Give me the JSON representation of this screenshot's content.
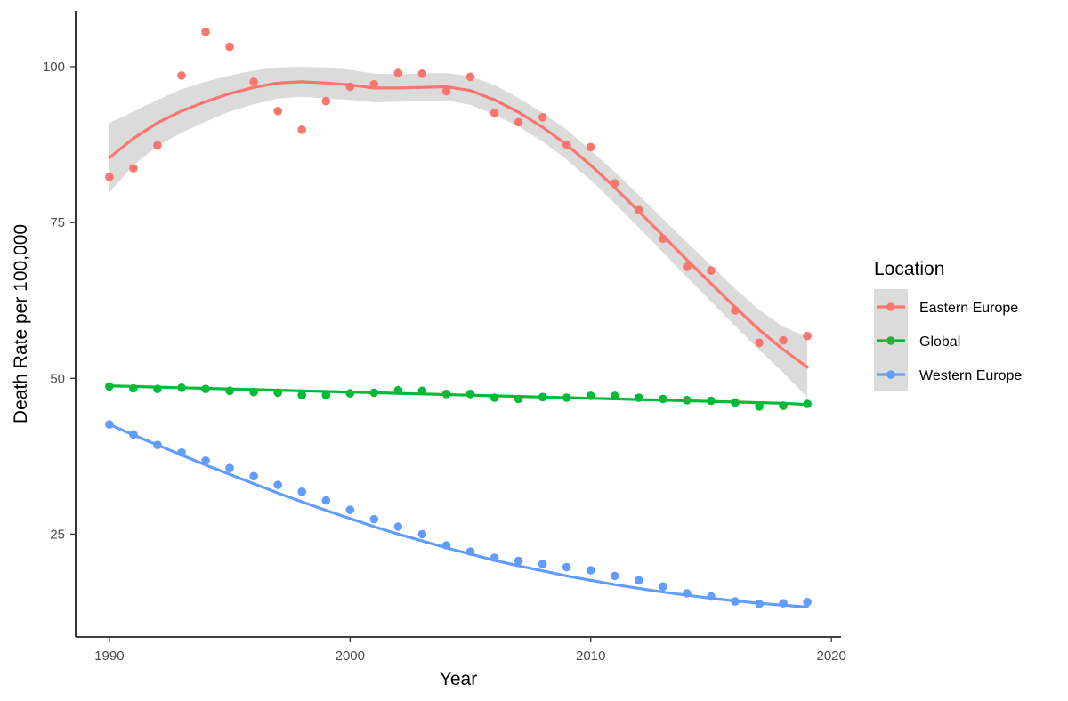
{
  "chart_data": {
    "type": "scatter",
    "title": "",
    "xlabel": "Year",
    "ylabel": "Death Rate per 100,000",
    "xlim": [
      1988.6,
      2020.4
    ],
    "ylim": [
      8.5,
      109
    ],
    "x_ticks": [
      1990,
      2000,
      2010,
      2020
    ],
    "y_ticks": [
      25,
      50,
      75,
      100
    ],
    "grid": false,
    "legend": {
      "title": "Location",
      "placement": "right"
    },
    "x": [
      1990,
      1991,
      1992,
      1993,
      1994,
      1995,
      1996,
      1997,
      1998,
      1999,
      2000,
      2001,
      2002,
      2003,
      2004,
      2005,
      2006,
      2007,
      2008,
      2009,
      2010,
      2011,
      2012,
      2013,
      2014,
      2015,
      2016,
      2017,
      2018,
      2019
    ],
    "series": [
      {
        "name": "Eastern Europe",
        "color": "#F8766D",
        "values": [
          82.3,
          83.7,
          87.4,
          98.6,
          105.6,
          103.2,
          97.6,
          92.9,
          89.9,
          94.5,
          96.8,
          97.2,
          99.0,
          98.9,
          96.1,
          98.4,
          92.6,
          91.1,
          91.9,
          87.5,
          87.1,
          81.3,
          77.0,
          72.4,
          67.9,
          67.3,
          60.9,
          55.7,
          56.1,
          56.8
        ],
        "smooth": [
          85.4,
          88.5,
          91.0,
          92.9,
          94.4,
          95.7,
          96.7,
          97.4,
          97.6,
          97.4,
          97.1,
          96.6,
          96.6,
          96.7,
          96.8,
          96.2,
          94.7,
          92.7,
          90.3,
          87.5,
          84.2,
          80.6,
          76.8,
          72.9,
          69.0,
          65.2,
          61.4,
          57.8,
          54.6,
          51.8
        ],
        "ci_upper": [
          91.0,
          92.8,
          94.7,
          96.4,
          97.6,
          98.6,
          99.4,
          99.9,
          100.0,
          99.9,
          99.5,
          98.9,
          98.8,
          98.9,
          99.0,
          98.5,
          97.1,
          95.0,
          92.6,
          89.9,
          86.6,
          83.1,
          79.4,
          75.6,
          71.8,
          68.1,
          64.4,
          61.0,
          58.3,
          56.6
        ],
        "ci_lower": [
          79.8,
          84.2,
          87.3,
          89.4,
          91.2,
          92.8,
          94.0,
          94.9,
          95.2,
          94.9,
          94.7,
          94.3,
          94.4,
          94.5,
          94.6,
          93.9,
          92.3,
          90.4,
          88.0,
          85.1,
          81.8,
          78.1,
          74.2,
          70.2,
          66.2,
          62.3,
          58.4,
          54.6,
          50.9,
          47.0
        ]
      },
      {
        "name": "Global",
        "color": "#00BA38",
        "values": [
          48.7,
          48.4,
          48.3,
          48.5,
          48.3,
          48.0,
          47.8,
          47.7,
          47.3,
          47.3,
          47.6,
          47.7,
          48.1,
          48.0,
          47.5,
          47.5,
          46.9,
          46.7,
          47.0,
          46.9,
          47.2,
          47.2,
          46.9,
          46.7,
          46.5,
          46.4,
          46.1,
          45.5,
          45.6,
          45.9
        ],
        "smooth": [
          48.8,
          48.7,
          48.6,
          48.5,
          48.4,
          48.3,
          48.2,
          48.1,
          48.0,
          47.9,
          47.8,
          47.7,
          47.6,
          47.5,
          47.4,
          47.3,
          47.2,
          47.1,
          47.0,
          46.9,
          46.8,
          46.7,
          46.6,
          46.5,
          46.4,
          46.3,
          46.2,
          46.1,
          46.0,
          45.8
        ]
      },
      {
        "name": "Western Europe",
        "color": "#619CFF",
        "values": [
          42.6,
          41.0,
          39.3,
          38.1,
          36.8,
          35.6,
          34.3,
          32.9,
          31.8,
          30.4,
          28.9,
          27.4,
          26.2,
          25.0,
          23.2,
          22.2,
          21.2,
          20.7,
          20.2,
          19.7,
          19.2,
          18.3,
          17.6,
          16.6,
          15.5,
          15.0,
          14.2,
          13.8,
          13.9,
          14.1
        ],
        "smooth": [
          42.6,
          40.9,
          39.3,
          37.7,
          36.1,
          34.6,
          33.1,
          31.6,
          30.2,
          28.8,
          27.5,
          26.2,
          25.0,
          23.9,
          22.8,
          21.8,
          20.8,
          19.9,
          19.1,
          18.3,
          17.6,
          16.9,
          16.3,
          15.7,
          15.2,
          14.7,
          14.3,
          13.9,
          13.6,
          13.3
        ]
      }
    ]
  }
}
